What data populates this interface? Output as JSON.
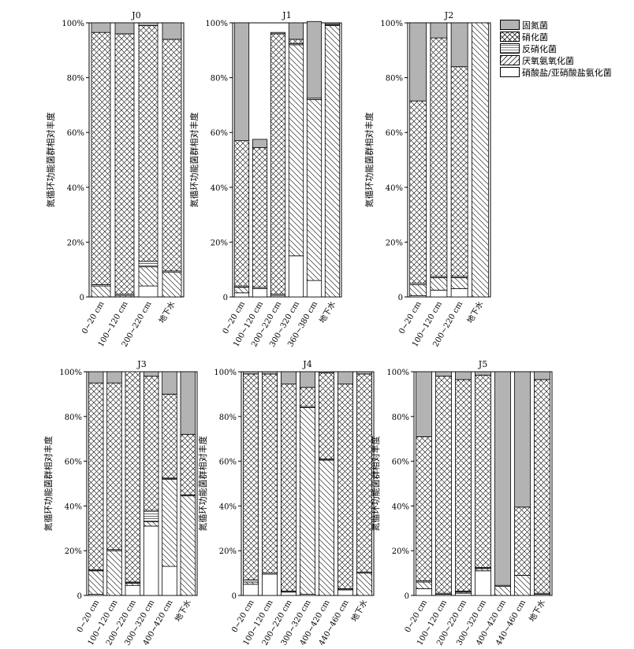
{
  "figure": {
    "legend": [
      {
        "key": "fix",
        "label": "固氮菌",
        "pattern": "solid-gray"
      },
      {
        "key": "nit",
        "label": "硝化菌",
        "pattern": "crosshatch"
      },
      {
        "key": "den",
        "label": "反硝化菌",
        "pattern": "horizontal-lines"
      },
      {
        "key": "ana",
        "label": "厌氧氨氧化菌",
        "pattern": "diagonal-lines"
      },
      {
        "key": "dnra",
        "label": "硝酸盐/亚硝酸盐氨化菌",
        "pattern": "white"
      }
    ],
    "colors": {
      "fix": "#b3b3b3",
      "stroke": "#000000",
      "background": "#ffffff"
    }
  },
  "chart_data": [
    {
      "type": "bar",
      "stacked": true,
      "title": "J0",
      "ylabel": "氮循环功能菌群相对丰度",
      "ylim": [
        0,
        100
      ],
      "yticks": [
        "0",
        "20%",
        "40%",
        "60%",
        "80%",
        "100%"
      ],
      "categories": [
        "0~20 cm",
        "100~120 cm",
        "200~220 cm",
        "地下水"
      ],
      "series": [
        {
          "name": "硝酸盐/亚硝酸盐氨化菌",
          "values": [
            0,
            0,
            4,
            0
          ]
        },
        {
          "name": "厌氧氨氧化菌",
          "values": [
            4,
            0.5,
            7,
            9
          ]
        },
        {
          "name": "反硝化菌",
          "values": [
            0.5,
            0.5,
            2,
            0.5
          ]
        },
        {
          "name": "硝化菌",
          "values": [
            92,
            95,
            86,
            84.5
          ]
        },
        {
          "name": "固氮菌",
          "values": [
            3.5,
            4,
            1,
            6
          ]
        }
      ]
    },
    {
      "type": "bar",
      "stacked": true,
      "title": "J1",
      "ylabel": "氮循环功能菌群相对丰度",
      "ylim": [
        0,
        100
      ],
      "yticks": [
        "0",
        "20%",
        "40%",
        "60%",
        "80%",
        "100%"
      ],
      "categories": [
        "0~20 cm",
        "100~120 cm",
        "200~220 cm",
        "300~320 cm",
        "360~380 cm",
        "地下水"
      ],
      "series": [
        {
          "name": "硝酸盐/亚硝酸盐氨化菌",
          "values": [
            1.5,
            3,
            0.5,
            15,
            6,
            0
          ]
        },
        {
          "name": "厌氧氨氧化菌",
          "values": [
            2,
            0,
            0,
            77,
            66,
            99
          ]
        },
        {
          "name": "反硝化菌",
          "values": [
            0.5,
            0.5,
            0.5,
            0.5,
            0.5,
            0.5
          ]
        },
        {
          "name": "硝化菌",
          "values": [
            53,
            51,
            95,
            1.5,
            0,
            0
          ]
        },
        {
          "name": "固氮菌",
          "values": [
            43,
            3,
            0.5,
            6,
            28,
            0.5
          ]
        }
      ]
    },
    {
      "type": "bar",
      "stacked": true,
      "title": "J2",
      "ylabel": "氮循环功能菌群相对丰度",
      "ylim": [
        0,
        100
      ],
      "yticks": [
        "0",
        "20%",
        "40%",
        "60%",
        "80%",
        "100%"
      ],
      "categories": [
        "0~20 cm",
        "100~120 cm",
        "200~220 cm",
        "地下水"
      ],
      "series": [
        {
          "name": "硝酸盐/亚硝酸盐氨化菌",
          "values": [
            0.5,
            2.5,
            3,
            0
          ]
        },
        {
          "name": "厌氧氨氧化菌",
          "values": [
            4,
            4.5,
            4,
            100
          ]
        },
        {
          "name": "反硝化菌",
          "values": [
            0.5,
            0.5,
            0.5,
            0
          ]
        },
        {
          "name": "硝化菌",
          "values": [
            66.5,
            87,
            76.5,
            0
          ]
        },
        {
          "name": "固氮菌",
          "values": [
            28.5,
            5.5,
            16,
            0
          ]
        }
      ]
    },
    {
      "type": "bar",
      "stacked": true,
      "title": "J3",
      "ylabel": "氮循环功能菌群相对丰度",
      "ylim": [
        0,
        100
      ],
      "yticks": [
        "0",
        "20%",
        "40%",
        "60%",
        "80%",
        "100%"
      ],
      "categories": [
        "0~20 cm",
        "100~120 cm",
        "200~220 cm",
        "300~320 cm",
        "400~420 cm",
        "地下水"
      ],
      "series": [
        {
          "name": "硝酸盐/亚硝酸盐氨化菌",
          "values": [
            0.5,
            0,
            4.5,
            31,
            13,
            0
          ]
        },
        {
          "name": "厌氧氨氧化菌",
          "values": [
            10.5,
            20,
            1,
            2,
            39,
            44.5
          ]
        },
        {
          "name": "反硝化菌",
          "values": [
            0.5,
            0.5,
            0.5,
            5,
            0.5,
            0.5
          ]
        },
        {
          "name": "硝化菌",
          "values": [
            83.5,
            74.5,
            94,
            60,
            37.5,
            27
          ]
        },
        {
          "name": "固氮菌",
          "values": [
            5,
            5,
            0,
            2,
            10,
            28
          ]
        }
      ]
    },
    {
      "type": "bar",
      "stacked": true,
      "title": "J4",
      "ylabel": "氮循环功能菌群相对丰度",
      "ylim": [
        0,
        100
      ],
      "yticks": [
        "0",
        "20%",
        "40%",
        "60%",
        "80%",
        "100%"
      ],
      "categories": [
        "0~20 cm",
        "100~120 cm",
        "200~220 cm",
        "300~320 cm",
        "400~420 cm",
        "440~460 cm",
        "地下水"
      ],
      "series": [
        {
          "name": "硝酸盐/亚硝酸盐氨化菌",
          "values": [
            5,
            9.5,
            1.5,
            0.5,
            0,
            2.5,
            0
          ]
        },
        {
          "name": "厌氧氨氧化菌",
          "values": [
            1,
            0,
            0,
            83.5,
            60.5,
            0,
            10
          ]
        },
        {
          "name": "反硝化菌",
          "values": [
            1,
            0.5,
            0.5,
            0.5,
            0.5,
            0.5,
            0.5
          ]
        },
        {
          "name": "硝化菌",
          "values": [
            92,
            89,
            92.5,
            8.5,
            38.5,
            91.5,
            88.5
          ]
        },
        {
          "name": "固氮菌",
          "values": [
            1,
            1,
            5.5,
            7,
            0.5,
            5.5,
            1
          ]
        }
      ]
    },
    {
      "type": "bar",
      "stacked": true,
      "title": "J5",
      "ylabel": "氮循环功能菌群相对丰度",
      "ylim": [
        0,
        100
      ],
      "yticks": [
        "0",
        "20%",
        "40%",
        "60%",
        "80%",
        "100%"
      ],
      "categories": [
        "0~20 cm",
        "100~120 cm",
        "200~220 cm",
        "300~320 cm",
        "400~420 cm",
        "440~460 cm",
        "地下水"
      ],
      "series": [
        {
          "name": "硝酸盐/亚硝酸盐氨化菌",
          "values": [
            3,
            0.5,
            1,
            11,
            0,
            0,
            0.5
          ]
        },
        {
          "name": "厌氧氨氧化菌",
          "values": [
            3,
            0,
            0.5,
            1,
            4,
            9,
            0
          ]
        },
        {
          "name": "反硝化菌",
          "values": [
            0.5,
            0.5,
            0.5,
            0.5,
            0.5,
            0,
            0.5
          ]
        },
        {
          "name": "硝化菌",
          "values": [
            64.5,
            97,
            94.5,
            86,
            0,
            30.5,
            95.5
          ]
        },
        {
          "name": "固氮菌",
          "values": [
            29,
            2,
            3.5,
            1.5,
            95.5,
            60.5,
            3.5
          ]
        }
      ]
    }
  ]
}
